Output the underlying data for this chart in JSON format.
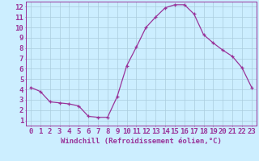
{
  "x": [
    0,
    1,
    2,
    3,
    4,
    5,
    6,
    7,
    8,
    9,
    10,
    11,
    12,
    13,
    14,
    15,
    16,
    17,
    18,
    19,
    20,
    21,
    22,
    23
  ],
  "y": [
    4.2,
    3.8,
    2.8,
    2.7,
    2.6,
    2.4,
    1.4,
    1.3,
    1.3,
    3.3,
    6.3,
    8.1,
    10.0,
    11.0,
    11.9,
    12.2,
    12.2,
    11.3,
    9.3,
    8.5,
    7.8,
    7.2,
    6.1,
    4.2
  ],
  "line_color": "#993399",
  "marker": "+",
  "xlabel": "Windchill (Refroidissement éolien,°C)",
  "bg_color": "#cceeff",
  "grid_color": "#aaccdd",
  "xlim": [
    -0.5,
    23.5
  ],
  "ylim": [
    0.5,
    12.5
  ],
  "xtick_vals": [
    0,
    1,
    2,
    3,
    4,
    5,
    6,
    7,
    8,
    9,
    10,
    11,
    12,
    13,
    14,
    15,
    16,
    17,
    18,
    19,
    20,
    21,
    22,
    23
  ],
  "xtick_labels": [
    "0",
    "1",
    "2",
    "3",
    "4",
    "5",
    "6",
    "7",
    "8",
    "9",
    "10",
    "11",
    "12",
    "13",
    "14",
    "15",
    "16",
    "17",
    "18",
    "19",
    "20",
    "21",
    "22",
    "23"
  ],
  "ytick_vals": [
    1,
    2,
    3,
    4,
    5,
    6,
    7,
    8,
    9,
    10,
    11,
    12
  ],
  "ytick_labels": [
    "1",
    "2",
    "3",
    "4",
    "5",
    "6",
    "7",
    "8",
    "9",
    "10",
    "11",
    "12"
  ],
  "tick_color": "#993399",
  "label_color": "#993399",
  "font_size": 6.5
}
